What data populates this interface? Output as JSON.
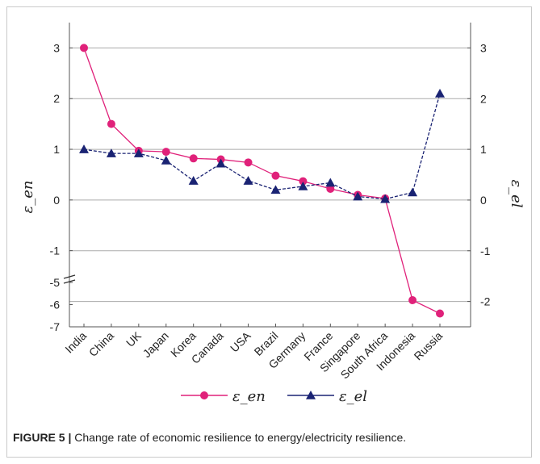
{
  "caption": {
    "label": "FIGURE 5 |",
    "text": "Change rate of economic resilience to energy/electricity resilience."
  },
  "chart_data": {
    "type": "line",
    "categories": [
      "India",
      "China",
      "UK",
      "Japan",
      "Korea",
      "Canada",
      "USA",
      "Brazil",
      "Germany",
      "France",
      "Singapore",
      "South Africa",
      "Indonesia",
      "Russia"
    ],
    "series": [
      {
        "name": "ε_en",
        "axis": "left",
        "marker": "circle",
        "color": "#e0217a",
        "values": [
          3.0,
          1.5,
          0.97,
          0.95,
          0.82,
          0.8,
          0.74,
          0.48,
          0.37,
          0.22,
          0.1,
          0.03,
          -5.8,
          -6.4
        ]
      },
      {
        "name": "ε_el",
        "axis": "right",
        "marker": "triangle",
        "color": "#1a2373",
        "values": [
          1.0,
          0.92,
          0.92,
          0.78,
          0.38,
          0.72,
          0.38,
          0.2,
          0.27,
          0.34,
          0.07,
          0.02,
          0.15,
          2.1
        ]
      }
    ],
    "y_left": {
      "label": "ε_en",
      "lower_segment": {
        "range": [
          -7,
          -5
        ],
        "ticks": [
          "-5",
          "-6",
          "-7"
        ]
      },
      "upper_segment": {
        "range": [
          -1.5,
          3.5
        ],
        "ticks": [
          "-1",
          "0",
          "1",
          "2",
          "3"
        ]
      },
      "broken_axis": true
    },
    "y_right": {
      "label": "ε_el",
      "range": [
        -2.5,
        3.5
      ],
      "ticks": [
        "-2",
        "-1",
        "0",
        "1",
        "2",
        "3"
      ]
    },
    "grid": "horizontal",
    "legend_position": "bottom"
  }
}
